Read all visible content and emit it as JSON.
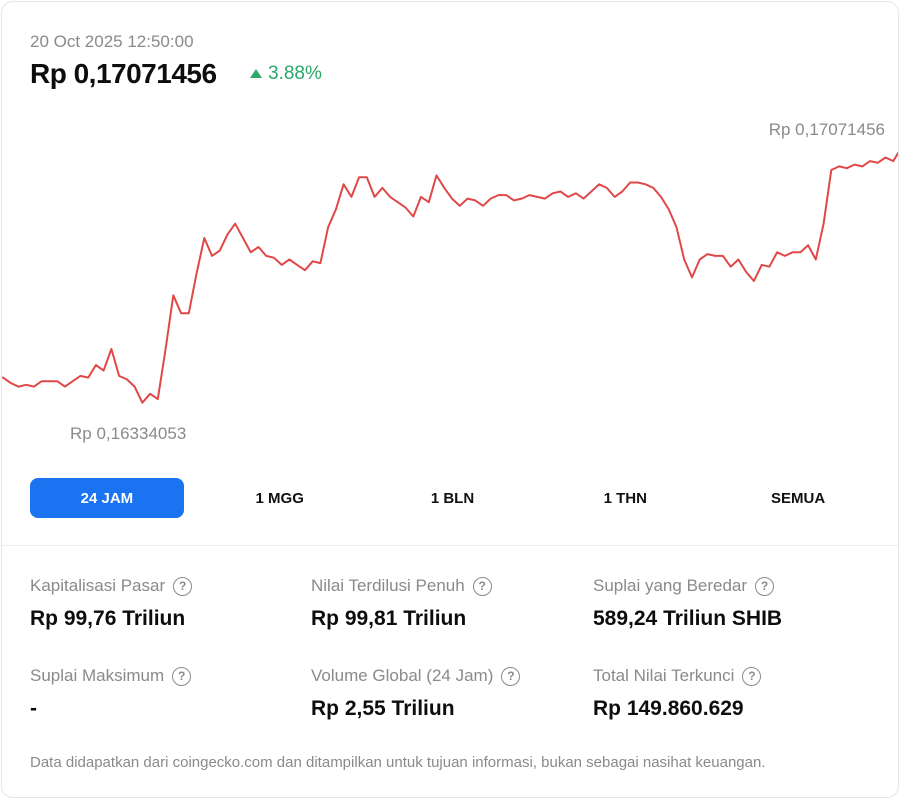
{
  "header": {
    "timestamp": "20 Oct 2025 12:50:00",
    "price": "Rp 0,17071456",
    "change": "3.88%",
    "change_direction": "up",
    "change_color": "#2aa867"
  },
  "chart_data": {
    "type": "line",
    "line_color": "#e04848",
    "high_label": "Rp 0,17071456",
    "low_label": "Rp 0,16334053",
    "ylim": [
      0.16334053,
      0.17071456
    ],
    "grid": false,
    "values": [
      0.1643,
      0.16415,
      0.16405,
      0.1641,
      0.16405,
      0.1642,
      0.1642,
      0.1642,
      0.16405,
      0.1642,
      0.16435,
      0.1643,
      0.16465,
      0.1645,
      0.1651,
      0.16435,
      0.16425,
      0.16405,
      0.1636,
      0.16385,
      0.1637,
      0.1651,
      0.1666,
      0.1661,
      0.1661,
      0.1672,
      0.1682,
      0.1677,
      0.16785,
      0.1683,
      0.1686,
      0.1682,
      0.1678,
      0.16795,
      0.1677,
      0.16765,
      0.16745,
      0.1676,
      0.16745,
      0.1673,
      0.16755,
      0.1675,
      0.1685,
      0.169,
      0.1697,
      0.16935,
      0.1699,
      0.1699,
      0.16935,
      0.1696,
      0.16935,
      0.1692,
      0.16905,
      0.1688,
      0.16935,
      0.1692,
      0.16995,
      0.1696,
      0.1693,
      0.1691,
      0.1693,
      0.16925,
      0.1691,
      0.1693,
      0.1694,
      0.1694,
      0.16925,
      0.1693,
      0.1694,
      0.16935,
      0.1693,
      0.16945,
      0.1695,
      0.16935,
      0.16945,
      0.1693,
      0.1695,
      0.1697,
      0.1696,
      0.16935,
      0.1695,
      0.16975,
      0.16975,
      0.1697,
      0.1696,
      0.16935,
      0.169,
      0.1685,
      0.1676,
      0.1671,
      0.1676,
      0.16775,
      0.1677,
      0.1677,
      0.1674,
      0.1676,
      0.16725,
      0.167,
      0.16745,
      0.1674,
      0.1678,
      0.1677,
      0.1678,
      0.1678,
      0.168,
      0.1676,
      0.1686,
      0.1701,
      0.1702,
      0.17015,
      0.17025,
      0.1702,
      0.17035,
      0.1703,
      0.17045,
      0.17035,
      0.17071
    ]
  },
  "tabs": [
    {
      "label": "24 JAM",
      "active": true
    },
    {
      "label": "1 MGG",
      "active": false
    },
    {
      "label": "1 BLN",
      "active": false
    },
    {
      "label": "1 THN",
      "active": false
    },
    {
      "label": "SEMUA",
      "active": false
    }
  ],
  "stats": [
    {
      "label": "Kapitalisasi Pasar",
      "value": "Rp 99,76 Triliun"
    },
    {
      "label": "Nilai Terdilusi Penuh",
      "value": "Rp 99,81 Triliun"
    },
    {
      "label": "Suplai yang Beredar",
      "value": "589,24 Triliun SHIB"
    },
    {
      "label": "Suplai Maksimum",
      "value": "-"
    },
    {
      "label": "Volume Global (24 Jam)",
      "value": "Rp 2,55 Triliun"
    },
    {
      "label": "Total Nilai Terkunci",
      "value": "Rp 149.860.629"
    }
  ],
  "help_icon_glyph": "?",
  "footnote": "Data didapatkan dari coingecko.com dan ditampilkan untuk tujuan informasi, bukan sebagai nasihat keuangan."
}
